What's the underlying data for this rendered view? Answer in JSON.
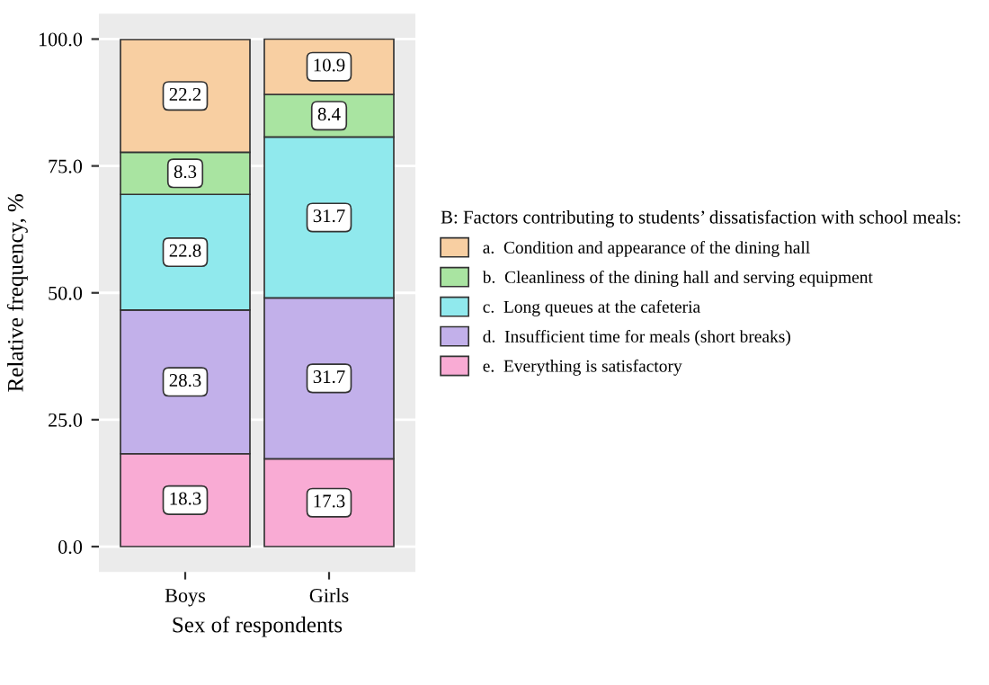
{
  "chart_data": {
    "type": "bar",
    "stacked": true,
    "xlabel": "Sex of respondents",
    "ylabel": "Relative frequency, %",
    "legend_title": "B: Factors contributing to students’ dissatisfaction with school meals:",
    "categories": [
      "Boys",
      "Girls"
    ],
    "series": [
      {
        "name": "e.  Everything is satisfactory",
        "color": "#f9abd4",
        "values": [
          18.3,
          17.3
        ]
      },
      {
        "name": "d.  Insufficient time for meals (short breaks)",
        "color": "#c2b0ea",
        "values": [
          28.3,
          31.7
        ]
      },
      {
        "name": "c.  Long queues at the cafeteria",
        "color": "#90e9ed",
        "values": [
          22.8,
          31.7
        ]
      },
      {
        "name": "b.  Cleanliness of the dining hall and serving equipment",
        "color": "#a9e4a1",
        "values": [
          8.3,
          8.4
        ]
      },
      {
        "name": "a.  Condition and appearance of the dining hall",
        "color": "#f8cfa2",
        "values": [
          22.2,
          10.9
        ]
      }
    ],
    "ylim": [
      -5,
      105
    ],
    "yticks": [
      {
        "value": 0,
        "label": "0.0"
      },
      {
        "value": 25,
        "label": "25.0"
      },
      {
        "value": 50,
        "label": "50.0"
      },
      {
        "value": 75,
        "label": "75.0"
      },
      {
        "value": 100,
        "label": "100.0"
      }
    ],
    "grid": "y",
    "legend": "right",
    "data_labels": true
  }
}
